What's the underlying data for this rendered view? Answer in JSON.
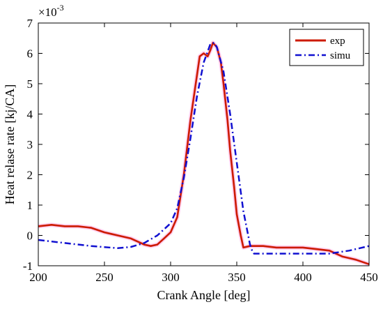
{
  "chart_data": {
    "type": "line",
    "title": "",
    "xlabel": "Crank Angle [deg]",
    "ylabel": "Heat relase rate [kj/CA]",
    "y_multiplier_label": "×10",
    "y_multiplier_exponent": "-3",
    "xlim": [
      200,
      450
    ],
    "ylim": [
      -1,
      7
    ],
    "xticks": [
      200,
      250,
      300,
      350,
      400,
      450
    ],
    "yticks": [
      -1,
      0,
      1,
      2,
      3,
      4,
      5,
      6,
      7
    ],
    "grid": false,
    "legend_position": "top-right",
    "series": [
      {
        "name": "exp",
        "color": "#cc1a00",
        "style": "solid",
        "x": [
          200,
          210,
          220,
          230,
          240,
          250,
          255,
          260,
          270,
          280,
          285,
          290,
          295,
          300,
          305,
          310,
          315,
          320,
          322,
          325,
          328,
          330,
          332,
          335,
          338,
          340,
          343,
          345,
          348,
          350,
          353,
          355,
          360,
          370,
          380,
          390,
          400,
          410,
          420,
          430,
          440,
          450
        ],
        "y": [
          0.3,
          0.35,
          0.3,
          0.3,
          0.25,
          0.1,
          0.05,
          0.0,
          -0.1,
          -0.3,
          -0.35,
          -0.3,
          -0.1,
          0.1,
          0.6,
          2.0,
          3.8,
          5.3,
          5.9,
          6.0,
          5.9,
          6.1,
          6.35,
          6.2,
          5.7,
          5.0,
          3.8,
          2.8,
          1.6,
          0.7,
          0.0,
          -0.4,
          -0.35,
          -0.35,
          -0.4,
          -0.4,
          -0.4,
          -0.45,
          -0.5,
          -0.7,
          -0.8,
          -0.95
        ]
      },
      {
        "name": "simu",
        "color": "#1010d0",
        "style": "dashdot",
        "x": [
          200,
          220,
          240,
          260,
          270,
          280,
          290,
          300,
          305,
          310,
          315,
          320,
          325,
          330,
          333,
          335,
          340,
          345,
          350,
          355,
          360,
          362,
          363,
          370,
          380,
          400,
          420,
          435,
          450
        ],
        "y": [
          -0.15,
          -0.25,
          -0.35,
          -0.42,
          -0.38,
          -0.25,
          0.0,
          0.4,
          0.9,
          1.9,
          3.2,
          4.6,
          5.7,
          6.3,
          6.35,
          6.2,
          5.4,
          4.0,
          2.4,
          0.8,
          -0.3,
          -0.55,
          -0.6,
          -0.6,
          -0.6,
          -0.6,
          -0.6,
          -0.5,
          -0.35
        ]
      }
    ]
  }
}
